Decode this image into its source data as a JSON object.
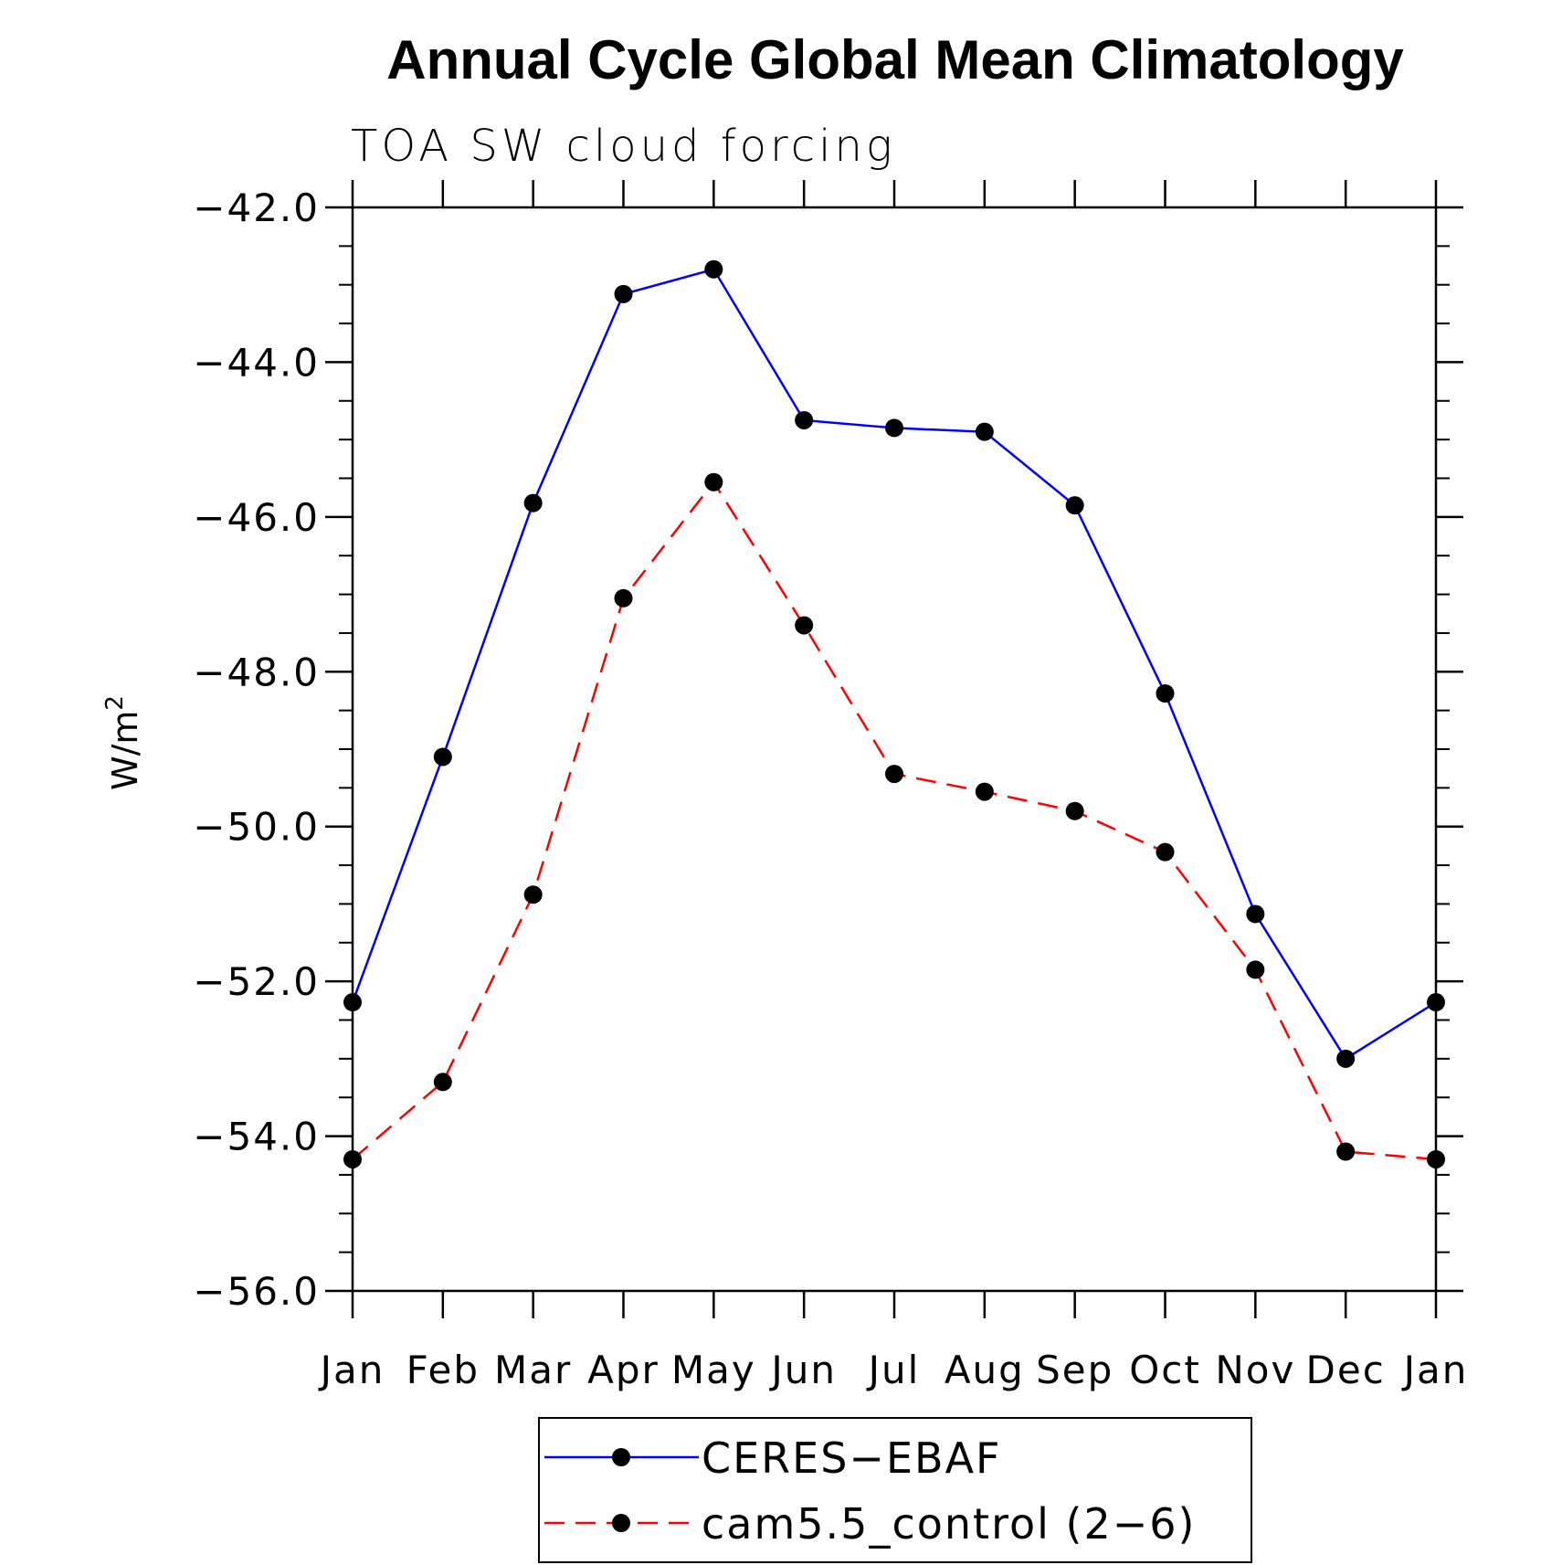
{
  "chart_data": {
    "type": "line",
    "title": "Annual Cycle Global Mean Climatology",
    "subtitle": "TOA SW cloud forcing",
    "ylabel_base": "W/m",
    "ylabel_sup": "2",
    "xlabel": "",
    "categories": [
      "Jan",
      "Feb",
      "Mar",
      "Apr",
      "May",
      "Jun",
      "Jul",
      "Aug",
      "Sep",
      "Oct",
      "Nov",
      "Dec",
      "Jan"
    ],
    "ylim": [
      -56.0,
      -42.0
    ],
    "yticks": [
      -42.0,
      -44.0,
      -46.0,
      -48.0,
      -50.0,
      -52.0,
      -54.0,
      -56.0
    ],
    "ytick_labels": [
      "−42.0",
      "−44.0",
      "−46.0",
      "−48.0",
      "−50.0",
      "−52.0",
      "−54.0",
      "−56.0"
    ],
    "grid": false,
    "legend_position": "bottom",
    "series": [
      {
        "name": "CERES−EBAF",
        "color": "#0000ff",
        "style": "solid",
        "values": [
          -52.27,
          -49.1,
          -45.82,
          -43.12,
          -42.8,
          -44.75,
          -44.85,
          -44.9,
          -45.85,
          -48.28,
          -51.13,
          -53.0,
          -52.27
        ]
      },
      {
        "name": "cam5.5_control (2−6)",
        "color": "#ff0000",
        "style": "dashed",
        "values": [
          -54.3,
          -53.3,
          -50.88,
          -47.05,
          -45.55,
          -47.4,
          -49.32,
          -49.55,
          -49.8,
          -50.33,
          -51.85,
          -54.2,
          -54.3
        ]
      }
    ]
  }
}
